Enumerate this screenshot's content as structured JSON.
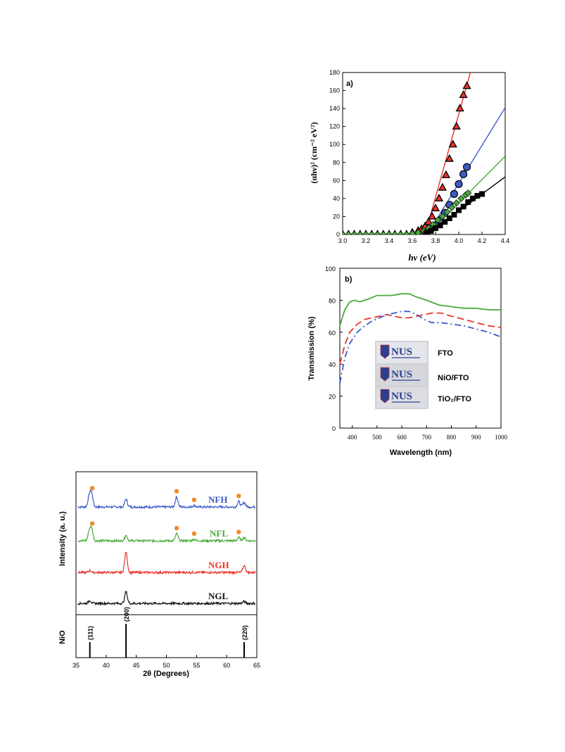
{
  "chart_data": [
    {
      "type": "line",
      "panel_label": "a)",
      "xlabel": "hν (eV)",
      "ylabel": "(αhν)² (cm⁻² eV²)",
      "xlim": [
        3.0,
        4.4
      ],
      "ylim": [
        0,
        180
      ],
      "x_ticks": [
        "3.0",
        "3.2",
        "3.4",
        "3.6",
        "3.8",
        "4.0",
        "4.2",
        "4.4"
      ],
      "y_ticks": [
        "0",
        "20",
        "40",
        "60",
        "80",
        "100",
        "120",
        "140",
        "160",
        "180"
      ],
      "colors": {
        "triangles": "#e8352d",
        "circles": "#3a5cc7",
        "diamonds": "#4aaa3a",
        "squares": "#000000"
      },
      "series": [
        {
          "marker": "triangle",
          "color": "#e8352d",
          "x": [
            3.0,
            3.05,
            3.1,
            3.15,
            3.2,
            3.25,
            3.3,
            3.35,
            3.4,
            3.45,
            3.5,
            3.55,
            3.6,
            3.65,
            3.68,
            3.71,
            3.74,
            3.77,
            3.8,
            3.83,
            3.86,
            3.89,
            3.92,
            3.95,
            3.98,
            4.01,
            4.04,
            4.07
          ],
          "y": [
            0,
            0,
            0,
            0,
            0,
            0,
            0,
            0,
            0,
            0,
            0,
            0,
            2,
            4,
            6,
            9,
            14,
            20,
            29,
            40,
            52,
            66,
            84,
            100,
            120,
            140,
            155,
            165
          ],
          "fit_line": {
            "x": [
              3.71,
              4.1
            ],
            "y": [
              0,
              180
            ]
          }
        },
        {
          "marker": "circle",
          "color": "#3a5cc7",
          "x": [
            3.72,
            3.76,
            3.8,
            3.84,
            3.88,
            3.92,
            3.96,
            4.0,
            4.04,
            4.07
          ],
          "y": [
            2,
            6,
            10,
            16,
            24,
            33,
            45,
            56,
            67,
            75
          ],
          "fit_line": {
            "x": [
              3.73,
              4.4
            ],
            "y": [
              0,
              141
            ]
          }
        },
        {
          "marker": "diamond",
          "color": "#4aaa3a",
          "x": [
            3.0,
            3.05,
            3.1,
            3.15,
            3.2,
            3.25,
            3.3,
            3.35,
            3.4,
            3.45,
            3.5,
            3.55,
            3.6,
            3.65,
            3.7,
            3.74,
            3.78,
            3.82,
            3.86,
            3.9,
            3.94,
            3.98,
            4.02,
            4.06,
            4.08
          ],
          "y": [
            0,
            0,
            0,
            0,
            0,
            0,
            0,
            0,
            0,
            0,
            0,
            0,
            1,
            2,
            4,
            7,
            11,
            16,
            20,
            25,
            30,
            35,
            40,
            44,
            46
          ],
          "fit_line": {
            "x": [
              3.73,
              4.4
            ],
            "y": [
              0,
              87
            ]
          }
        },
        {
          "marker": "square",
          "color": "#000000",
          "x": [
            3.72,
            3.76,
            3.8,
            3.84,
            3.88,
            3.92,
            3.96,
            4.0,
            4.04,
            4.08,
            4.12,
            4.16,
            4.2
          ],
          "y": [
            2,
            4,
            7,
            10,
            14,
            18,
            22,
            27,
            31,
            36,
            40,
            43,
            45
          ],
          "fit_line": {
            "x": [
              3.73,
              4.4
            ],
            "y": [
              0,
              64
            ]
          }
        }
      ]
    },
    {
      "type": "line",
      "panel_label": "b)",
      "xlabel": "Wavelength (nm)",
      "ylabel": "Transmission (%)",
      "xlim": [
        350,
        1000
      ],
      "ylim": [
        0,
        100
      ],
      "x_ticks": [
        "400",
        "500",
        "600",
        "700",
        "800",
        "900",
        "1000"
      ],
      "y_ticks": [
        "0",
        "20",
        "40",
        "60",
        "80",
        "100"
      ],
      "legend_in_photo": [
        "FTO",
        "NiO/FTO",
        "TiO₂/FTO"
      ],
      "photo_logo_text": "NUS",
      "series": [
        {
          "color": "#4aaa3a",
          "style": "solid",
          "x": [
            350,
            370,
            390,
            410,
            430,
            450,
            470,
            500,
            530,
            560,
            600,
            630,
            660,
            700,
            750,
            800,
            850,
            900,
            950,
            1000
          ],
          "y": [
            64,
            74,
            79,
            80,
            79,
            80,
            81,
            83,
            83,
            83,
            84,
            84,
            82,
            80,
            77,
            76,
            75,
            75,
            74,
            74
          ]
        },
        {
          "color": "#e8352d",
          "style": "dashed",
          "x": [
            350,
            370,
            390,
            420,
            450,
            480,
            510,
            540,
            570,
            600,
            630,
            660,
            690,
            720,
            760,
            800,
            850,
            900,
            950,
            1000
          ],
          "y": [
            40,
            52,
            60,
            65,
            68,
            69,
            70,
            71,
            70,
            69,
            69,
            70,
            71,
            72,
            72,
            70,
            68,
            66,
            64,
            63
          ]
        },
        {
          "color": "#3a5cc7",
          "style": "dashdot",
          "x": [
            350,
            370,
            390,
            420,
            450,
            480,
            510,
            540,
            570,
            600,
            630,
            660,
            690,
            720,
            760,
            800,
            850,
            900,
            950,
            1000
          ],
          "y": [
            28,
            44,
            53,
            60,
            64,
            67,
            69,
            71,
            72,
            73,
            73,
            71,
            68,
            66,
            66,
            65,
            64,
            62,
            60,
            57
          ]
        }
      ]
    },
    {
      "type": "line",
      "xlabel": "2θ (Degrees)",
      "ylabel": "Intensity (a. u.)",
      "reference_label": "NiO",
      "xlim": [
        35,
        65
      ],
      "x_ticks": [
        "35",
        "40",
        "45",
        "50",
        "55",
        "60",
        "65"
      ],
      "reference_peaks": [
        {
          "x": 37.3,
          "label": "(111)",
          "height": 0.35
        },
        {
          "x": 43.3,
          "label": "(200)",
          "height": 1.0
        },
        {
          "x": 62.9,
          "label": "(220)",
          "height": 0.35
        }
      ],
      "orange_marker_color": "#f08a2a",
      "series": [
        {
          "name": "NFH",
          "color": "#3a5cc7",
          "peaks": [
            [
              37.2,
              0.7
            ],
            [
              37.6,
              0.85
            ],
            [
              43.3,
              0.5
            ],
            [
              51.7,
              0.65
            ],
            [
              54.6,
              0.1
            ],
            [
              62.0,
              0.35
            ],
            [
              62.9,
              0.3
            ]
          ],
          "dots": [
            37.7,
            51.7,
            54.6,
            62.0
          ]
        },
        {
          "name": "NFL",
          "color": "#4aaa3a",
          "peaks": [
            [
              37.2,
              0.6
            ],
            [
              37.6,
              0.75
            ],
            [
              43.3,
              0.35
            ],
            [
              51.7,
              0.45
            ],
            [
              54.6,
              0.1
            ],
            [
              62.0,
              0.2
            ],
            [
              62.9,
              0.2
            ]
          ],
          "dots": [
            37.7,
            51.7,
            54.6,
            62.0
          ]
        },
        {
          "name": "NGH",
          "color": "#e8352d",
          "peaks": [
            [
              37.3,
              0.12
            ],
            [
              43.3,
              1.3
            ],
            [
              62.9,
              0.45
            ]
          ],
          "dots": []
        },
        {
          "name": "NGL",
          "color": "#111111",
          "peaks": [
            [
              37.3,
              0.2
            ],
            [
              43.3,
              0.75
            ],
            [
              62.9,
              0.12
            ]
          ],
          "dots": []
        }
      ]
    }
  ]
}
